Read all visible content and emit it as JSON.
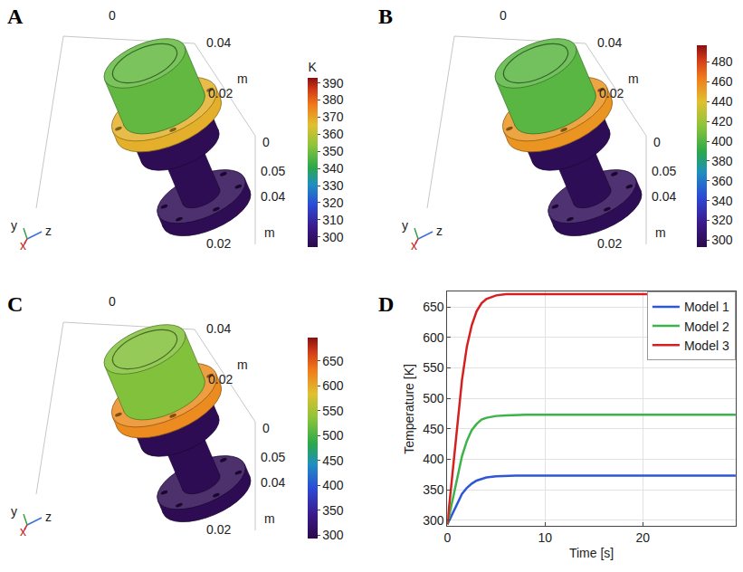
{
  "panels": [
    {
      "panel": "A",
      "type": "render",
      "colorbar": {
        "range": [
          294,
          393
        ],
        "ticks": [
          300,
          310,
          320,
          330,
          340,
          350,
          360,
          370,
          380,
          390
        ],
        "unit": "K"
      },
      "temperatures": {
        "cup": 348,
        "flange": 368,
        "base": 296
      },
      "axis_labels": [
        "0",
        "0.04",
        "0.02",
        "m",
        "0",
        "0.05",
        "0.04",
        "0.02",
        "m"
      ],
      "triad": [
        "y",
        "x",
        "z"
      ]
    },
    {
      "panel": "B",
      "type": "render",
      "colorbar": {
        "range": [
          293,
          497
        ],
        "ticks": [
          300,
          320,
          340,
          360,
          380,
          400,
          420,
          440,
          460,
          480
        ]
      },
      "temperatures": {
        "cup": 402,
        "flange": 455,
        "base": 298
      },
      "axis_labels": [
        "0",
        "0.04",
        "0.02",
        "m",
        "0",
        "0.05",
        "0.04",
        "0.02",
        "m"
      ],
      "triad": [
        "y",
        "x",
        "z"
      ]
    },
    {
      "panel": "C",
      "type": "render",
      "colorbar": {
        "range": [
          293,
          697
        ],
        "ticks": [
          300,
          350,
          400,
          450,
          500,
          550,
          600,
          650
        ]
      },
      "temperatures": {
        "cup": 530,
        "flange": 620,
        "base": 300
      },
      "axis_labels": [
        "0",
        "0.04",
        "0.02",
        "m",
        "0",
        "0.05",
        "0.04",
        "0.02",
        "m"
      ],
      "triad": [
        "y",
        "x",
        "z"
      ]
    }
  ],
  "chart_data": {
    "panel": "D",
    "type": "line",
    "x": [
      0,
      0.5,
      1,
      1.5,
      2,
      2.5,
      3,
      3.5,
      4,
      5,
      6,
      7,
      8,
      10,
      15,
      20,
      25,
      29.5
    ],
    "series": [
      {
        "name": "Model 1",
        "color": "#2e57d6",
        "values": [
          293,
          310,
          327,
          343,
          353,
          360,
          365,
          368,
          370,
          372,
          373,
          373,
          373,
          373,
          373,
          373,
          373,
          373
        ]
      },
      {
        "name": "Model 2",
        "color": "#3cb44b",
        "values": [
          293,
          330,
          370,
          405,
          430,
          448,
          458,
          465,
          468,
          471,
          472,
          473,
          473,
          473,
          473,
          473,
          473,
          473
        ]
      },
      {
        "name": "Model 3",
        "color": "#d62020",
        "values": [
          293,
          370,
          450,
          530,
          585,
          620,
          643,
          656,
          663,
          669,
          671,
          671,
          671,
          671,
          671,
          671,
          671,
          671
        ]
      }
    ],
    "xlabel": "Time [s]",
    "ylabel": "Temperature [K]",
    "xlim": [
      0,
      29.5
    ],
    "ylim": [
      290,
      675
    ],
    "xticks": [
      0,
      10,
      20
    ],
    "yticks": [
      300,
      350,
      400,
      450,
      500,
      550,
      600,
      650
    ],
    "grid": true,
    "legend": "top right"
  }
}
